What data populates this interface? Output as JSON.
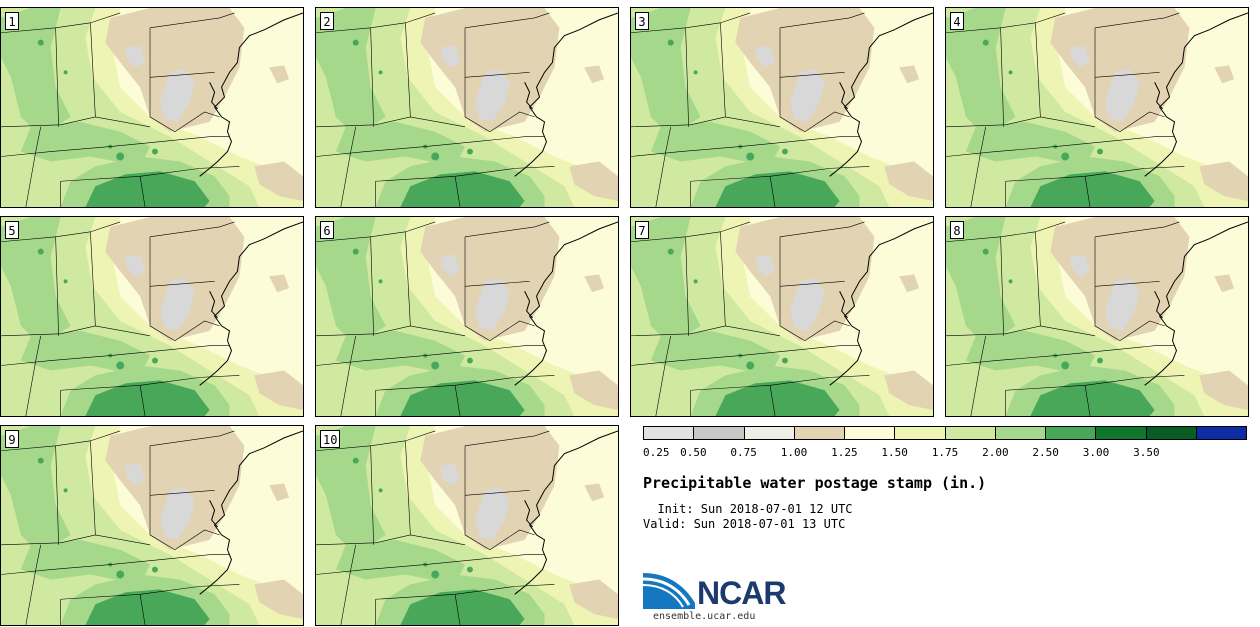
{
  "stamps": [
    {
      "label": "1"
    },
    {
      "label": "2"
    },
    {
      "label": "3"
    },
    {
      "label": "4"
    },
    {
      "label": "5"
    },
    {
      "label": "6"
    },
    {
      "label": "7"
    },
    {
      "label": "8"
    },
    {
      "label": "9"
    },
    {
      "label": "10"
    }
  ],
  "legend": {
    "title": "Precipitable water postage stamp (in.)",
    "init_line": "  Init: Sun 2018-07-01 12 UTC",
    "valid_line": "Valid: Sun 2018-07-01 13 UTC",
    "tick_labels": [
      "0.25",
      "0.50",
      "0.75",
      "1.00",
      "1.25",
      "1.50",
      "1.75",
      "2.00",
      "2.50",
      "3.00",
      "3.50"
    ],
    "colors": [
      "#e2e2e2",
      "#c8c8c8",
      "#eeeee4",
      "#e2d4b2",
      "#fcfdd8",
      "#eef4b3",
      "#cfe9a0",
      "#a5d88a",
      "#49a75a",
      "#10772f",
      "#0b5c24",
      "#0d2ca6"
    ]
  },
  "logo": {
    "name": "NCAR",
    "url": "ensemble.ucar.edu"
  }
}
